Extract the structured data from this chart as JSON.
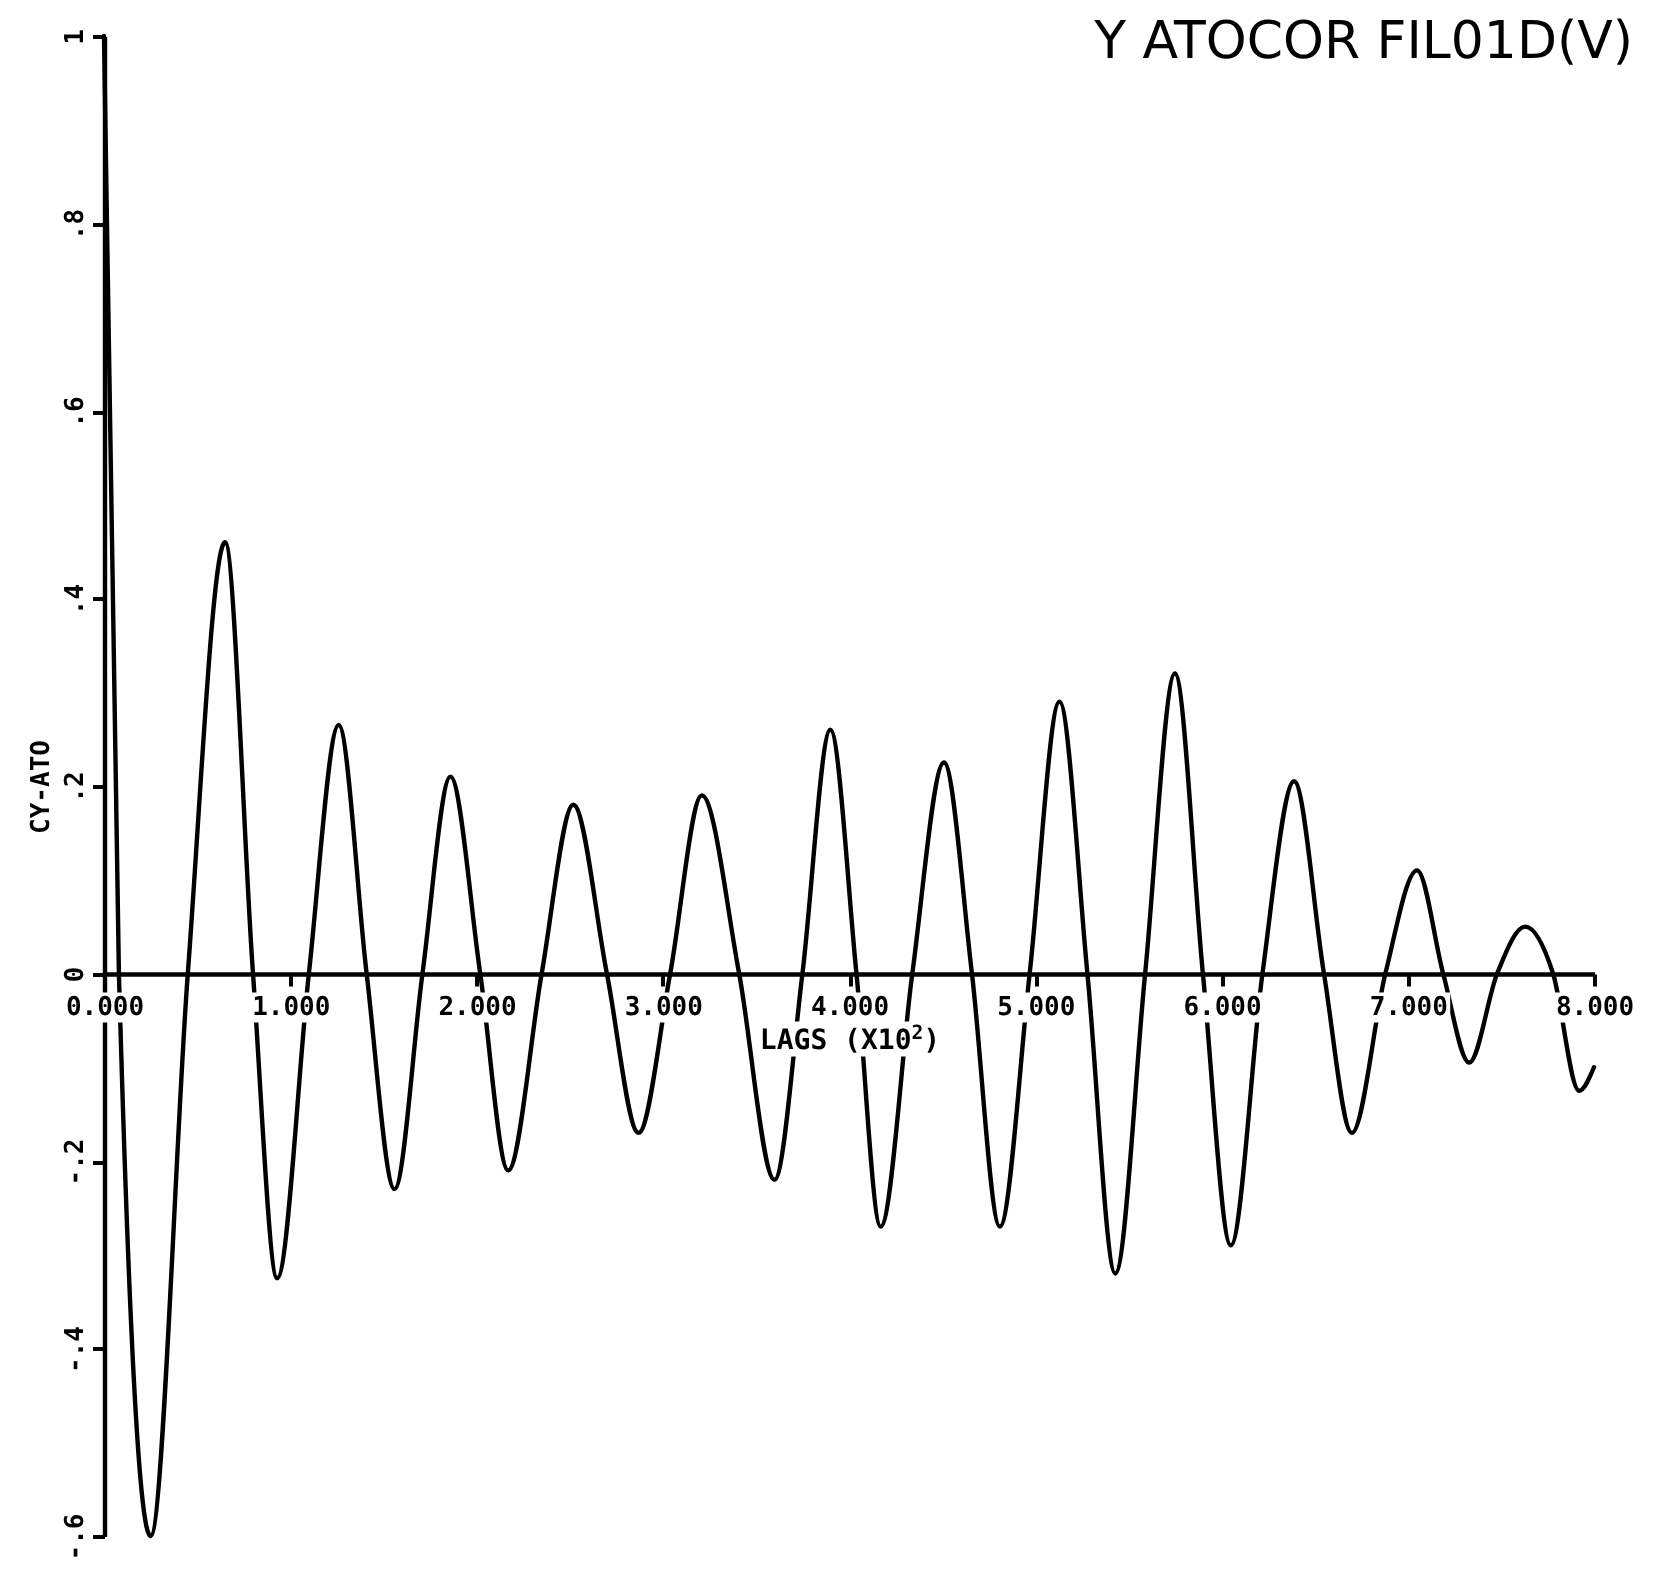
{
  "chart_data": {
    "type": "line",
    "title": "Y ATOCOR FIL01D(V)",
    "xlabel": "LAGS (X10$^{2}$)",
    "ylabel": "CY-ATO",
    "x": [
      0,
      0.08,
      0.25,
      0.45,
      0.65,
      0.8,
      0.93,
      1.1,
      1.26,
      1.41,
      1.56,
      1.71,
      1.86,
      2.02,
      2.17,
      2.35,
      2.52,
      2.7,
      2.87,
      3.04,
      3.21,
      3.41,
      3.6,
      3.75,
      3.9,
      4.04,
      4.17,
      4.34,
      4.51,
      4.66,
      4.81,
      4.97,
      5.13,
      5.28,
      5.43,
      5.59,
      5.75,
      5.9,
      6.05,
      6.22,
      6.39,
      6.55,
      6.7,
      6.88,
      7.05,
      7.19,
      7.33,
      7.48,
      7.63,
      7.78,
      7.92,
      8.0
    ],
    "series": [
      {
        "color": "#000000",
        "values": [
          1.0,
          0,
          -0.6,
          0,
          0.46,
          0,
          -0.325,
          0,
          0.265,
          0,
          -0.23,
          0,
          0.21,
          0,
          -0.21,
          0,
          0.18,
          0,
          -0.17,
          0,
          0.19,
          0,
          -0.22,
          0,
          0.26,
          0,
          -0.27,
          0,
          0.225,
          0,
          -0.27,
          0,
          0.29,
          0,
          -0.32,
          0,
          0.32,
          0,
          -0.29,
          0,
          0.205,
          0,
          -0.17,
          0,
          0.11,
          0,
          -0.095,
          0,
          0.05,
          0,
          -0.125,
          -0.1
        ]
      }
    ],
    "xlim": [
      0,
      8
    ],
    "ylim": [
      -0.6,
      1
    ],
    "xticks": [
      {
        "value": 0,
        "label": "0.000"
      },
      {
        "value": 1,
        "label": "1.000"
      },
      {
        "value": 2,
        "label": "2.000"
      },
      {
        "value": 3,
        "label": "3.000"
      },
      {
        "value": 4,
        "label": "4.000"
      },
      {
        "value": 5,
        "label": "5.000"
      },
      {
        "value": 6,
        "label": "6.000"
      },
      {
        "value": 7,
        "label": "7.000"
      },
      {
        "value": 8,
        "label": "8.000"
      }
    ],
    "yticks": [
      {
        "value": -0.6,
        "label": "-.6"
      },
      {
        "value": -0.4,
        "label": "-.4"
      },
      {
        "value": -0.2,
        "label": "-.2"
      },
      {
        "value": 0,
        "label": "0"
      },
      {
        "value": 0.2,
        "label": ".2"
      },
      {
        "value": 0.4,
        "label": ".4"
      },
      {
        "value": 0.6,
        "label": ".6"
      },
      {
        "value": 0.8,
        "label": ".8"
      },
      {
        "value": 1,
        "label": "1"
      }
    ],
    "grid": false,
    "marker": "none",
    "line_style": "solid"
  }
}
